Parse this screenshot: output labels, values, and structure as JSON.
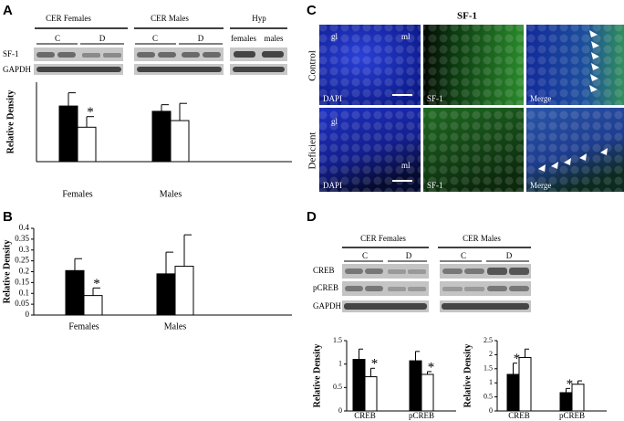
{
  "panel_letters": [
    "A",
    "B",
    "C",
    "D"
  ],
  "blot_a": {
    "groups": [
      "CER Females",
      "CER Males",
      "Hyp"
    ],
    "lanes": [
      "C",
      "D",
      "C",
      "D",
      "females",
      "males"
    ],
    "rows": [
      "SF-1",
      "GAPDH"
    ]
  },
  "micrograph": {
    "title": "SF-1",
    "rows": [
      "Control",
      "Deficient"
    ],
    "channels": [
      "DAPI",
      "SF-1",
      "Merge"
    ],
    "regions": [
      "gl",
      "ml"
    ]
  },
  "blot_d": {
    "groups": [
      "CER Females",
      "CER Males"
    ],
    "lanes": [
      "C",
      "D",
      "C",
      "D"
    ],
    "rows": [
      "CREB",
      "pCREB",
      "GAPDH"
    ]
  },
  "chart_data": [
    {
      "type": "bar",
      "y_label": "Relative Density",
      "categories": [
        "Females",
        "Males"
      ],
      "series": [
        {
          "color": "#000000",
          "values": [
            0.42,
            0.38
          ],
          "errors": [
            0.1,
            0.05
          ]
        },
        {
          "color": "#ffffff",
          "values": [
            0.26,
            0.31
          ],
          "errors": [
            0.08,
            0.13
          ],
          "significance": [
            "*",
            null
          ]
        }
      ],
      "ylim": [
        0,
        0.6
      ],
      "yticks": []
    },
    {
      "type": "bar",
      "y_label": "Relative Density",
      "categories": [
        "Females",
        "Males"
      ],
      "series": [
        {
          "color": "#000000",
          "values": [
            0.205,
            0.19
          ],
          "errors": [
            0.055,
            0.1
          ]
        },
        {
          "color": "#ffffff",
          "values": [
            0.09,
            0.225
          ],
          "errors": [
            0.035,
            0.145
          ],
          "significance": [
            "*",
            null
          ]
        }
      ],
      "ylim": [
        0,
        0.4
      ],
      "yticks": [
        0,
        0.05,
        0.1,
        0.15,
        0.2,
        0.25,
        0.3,
        0.35,
        0.4
      ]
    },
    {
      "type": "bar",
      "y_label": "Relative Density",
      "categories": [
        "CREB",
        "pCREB"
      ],
      "series": [
        {
          "color": "#000000",
          "values": [
            1.1,
            1.07
          ],
          "errors": [
            0.22,
            0.2
          ]
        },
        {
          "color": "#ffffff",
          "values": [
            0.73,
            0.78
          ],
          "errors": [
            0.18,
            0.06
          ],
          "significance": [
            "*",
            "*"
          ]
        }
      ],
      "ylim": [
        0,
        1.5
      ],
      "yticks": [
        0,
        0.5,
        1,
        1.5
      ]
    },
    {
      "type": "bar",
      "y_label": "Relative Density",
      "categories": [
        "CREB",
        "pCREB"
      ],
      "series": [
        {
          "color": "#000000",
          "values": [
            1.3,
            0.65
          ],
          "errors": [
            0.4,
            0.15
          ],
          "significance": [
            "*",
            "*"
          ]
        },
        {
          "color": "#ffffff",
          "values": [
            1.9,
            0.95
          ],
          "errors": [
            0.3,
            0.12
          ]
        }
      ],
      "ylim": [
        0,
        2.5
      ],
      "yticks": [
        0,
        0.5,
        1,
        1.5,
        2,
        2.5
      ]
    }
  ]
}
